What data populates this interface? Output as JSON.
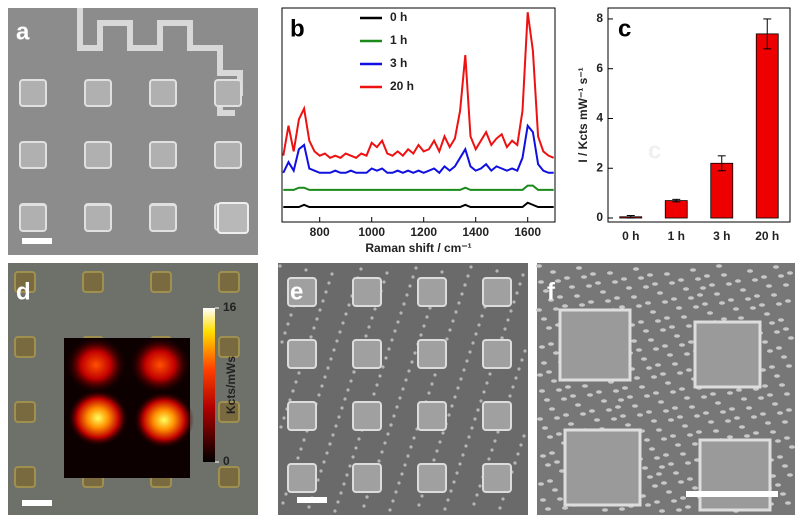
{
  "chart_data": [
    {
      "type": "line",
      "panel_label": "b",
      "xlabel": "Raman shift / cm⁻¹",
      "x": [
        660,
        680,
        700,
        720,
        740,
        760,
        780,
        800,
        820,
        840,
        860,
        880,
        900,
        920,
        940,
        960,
        980,
        1000,
        1020,
        1040,
        1060,
        1080,
        1100,
        1120,
        1140,
        1160,
        1180,
        1200,
        1220,
        1240,
        1260,
        1280,
        1300,
        1320,
        1340,
        1360,
        1380,
        1400,
        1420,
        1440,
        1460,
        1480,
        1500,
        1520,
        1540,
        1560,
        1580,
        1600,
        1620,
        1640,
        1660,
        1680,
        1700
      ],
      "xlim": [
        655,
        1705
      ],
      "xticks": [
        800,
        1000,
        1200,
        1400,
        1600
      ],
      "ylim": [
        0,
        100
      ],
      "series": [
        {
          "name": "0 h",
          "color": "#000000",
          "values": [
            7,
            7,
            7,
            7,
            8,
            7,
            7,
            7,
            7,
            7,
            7,
            7,
            7,
            7,
            7,
            7,
            7,
            7,
            7,
            7,
            7,
            7,
            7,
            7,
            7,
            7,
            7,
            7,
            7,
            7,
            7,
            7,
            7,
            7,
            7,
            8,
            7,
            7,
            7,
            7,
            7,
            7,
            7,
            7,
            7,
            7,
            7,
            9,
            8,
            7,
            7,
            7,
            7
          ]
        },
        {
          "name": "1 h",
          "color": "#1a8a1a",
          "values": [
            15,
            15,
            15,
            16,
            16,
            15,
            15,
            15,
            15,
            15,
            15,
            15,
            15,
            15,
            15,
            15,
            15,
            15,
            15,
            15,
            15,
            15,
            15,
            15,
            15,
            15,
            15,
            15,
            15,
            15,
            15,
            15,
            15,
            15,
            15,
            16,
            15,
            15,
            15,
            15,
            15,
            15,
            15,
            15,
            15,
            15,
            15,
            17,
            17,
            15,
            15,
            15,
            15
          ]
        },
        {
          "name": "3 h",
          "color": "#1010e0",
          "values": [
            23,
            28,
            24,
            34,
            36,
            25,
            24,
            23,
            23,
            23,
            24,
            23,
            23,
            24,
            23,
            23,
            23,
            25,
            24,
            25,
            23,
            23,
            24,
            23,
            24,
            23,
            24,
            23,
            24,
            25,
            23,
            26,
            24,
            26,
            30,
            34,
            26,
            24,
            25,
            27,
            24,
            26,
            25,
            24,
            25,
            24,
            30,
            45,
            42,
            27,
            24,
            23,
            23
          ]
        },
        {
          "name": "20 h",
          "color": "#ee1111",
          "values": [
            31,
            45,
            33,
            48,
            53,
            38,
            33,
            31,
            32,
            30,
            31,
            30,
            32,
            31,
            30,
            32,
            31,
            37,
            35,
            38,
            32,
            31,
            33,
            31,
            34,
            32,
            36,
            33,
            34,
            38,
            33,
            40,
            35,
            39,
            52,
            78,
            40,
            34,
            38,
            42,
            36,
            39,
            41,
            35,
            38,
            36,
            52,
            98,
            80,
            40,
            33,
            31,
            30
          ]
        }
      ]
    },
    {
      "type": "bar",
      "panel_label": "c",
      "ylabel": "I / Kcts mW⁻¹ s⁻¹",
      "annotation": "c",
      "categories": [
        "0 h",
        "1 h",
        "3 h",
        "20 h"
      ],
      "values": [
        0.05,
        0.7,
        2.2,
        7.4
      ],
      "errors": [
        0.05,
        0.05,
        0.3,
        0.6
      ],
      "color": "#ee0000",
      "ylim": [
        -0.16,
        8.44
      ],
      "yticks": [
        0,
        2,
        4,
        6,
        8
      ]
    }
  ],
  "panels": [
    {
      "label": "a"
    },
    {
      "label": "d"
    },
    {
      "label": "e"
    },
    {
      "label": "f"
    }
  ],
  "colorbar": {
    "label": "Kcts/mWs",
    "ticks": [
      16,
      0
    ],
    "lim": [
      0,
      16
    ]
  }
}
